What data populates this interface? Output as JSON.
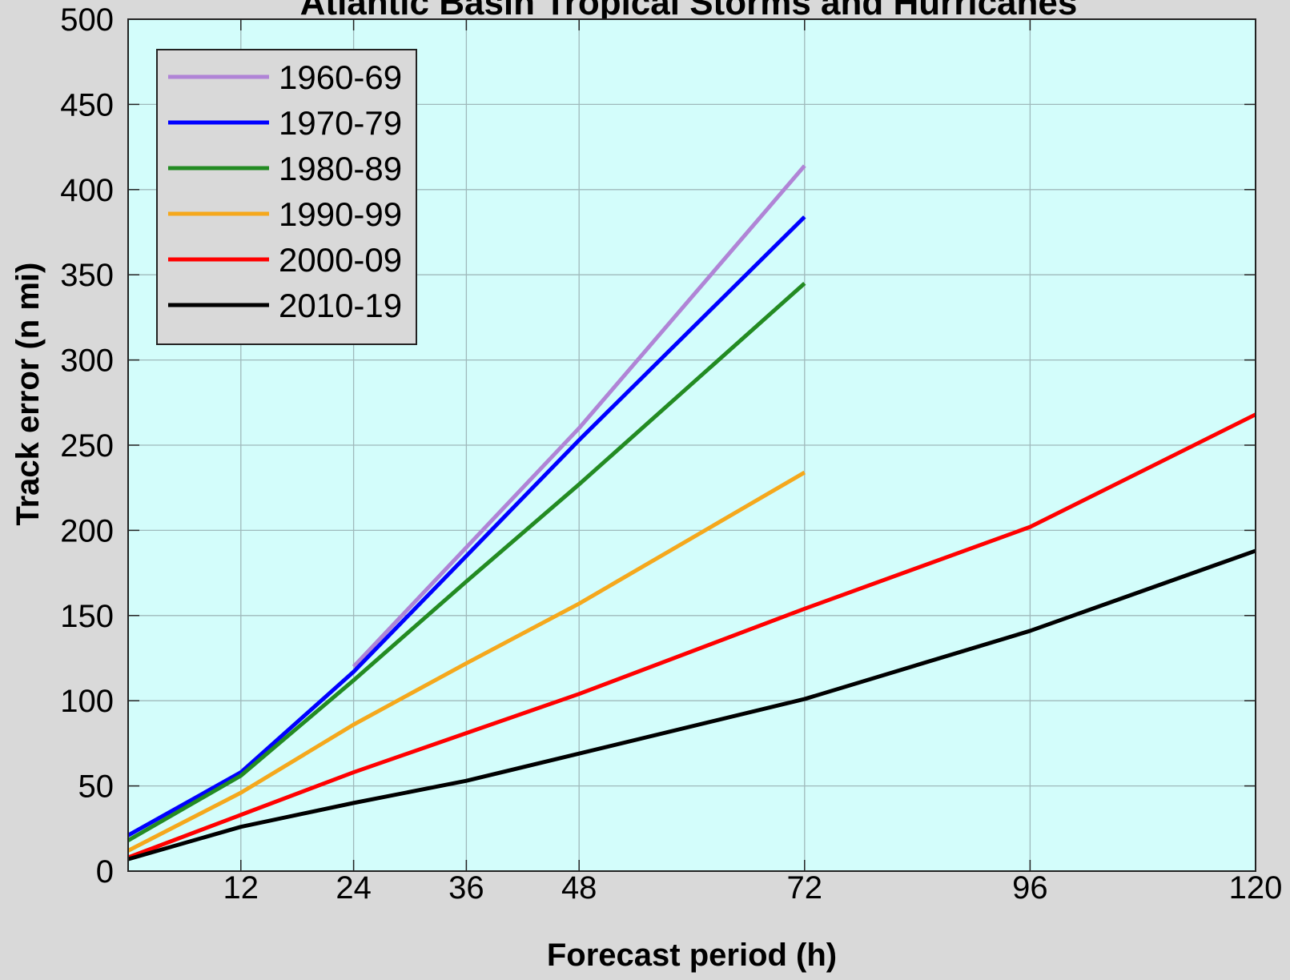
{
  "chart_data": {
    "type": "line",
    "title": "Atlantic Basin Tropical Storms and Hurricanes",
    "xlabel": "Forecast period (h)",
    "ylabel": "Track error (n mi)",
    "xlim": [
      0,
      120
    ],
    "ylim": [
      0,
      500
    ],
    "xticks": [
      12,
      24,
      36,
      48,
      72,
      96,
      120
    ],
    "yticks": [
      0,
      50,
      100,
      150,
      200,
      250,
      300,
      350,
      400,
      450,
      500
    ],
    "grid": true,
    "legend_position": "top-left",
    "background_color": "#d3fdfb",
    "series": [
      {
        "name": "1960-69",
        "color": "#b084d6",
        "x": [
          24,
          36,
          48,
          72
        ],
        "y": [
          120,
          190,
          260,
          414
        ]
      },
      {
        "name": "1970-79",
        "color": "#0000ff",
        "x": [
          0,
          12,
          24,
          36,
          48,
          72
        ],
        "y": [
          21,
          58,
          117,
          185,
          253,
          384
        ]
      },
      {
        "name": "1980-89",
        "color": "#238b22",
        "x": [
          0,
          12,
          24,
          36,
          48,
          72
        ],
        "y": [
          18,
          56,
          112,
          170,
          227,
          345
        ]
      },
      {
        "name": "1990-99",
        "color": "#f5a81c",
        "x": [
          0,
          12,
          24,
          36,
          48,
          72
        ],
        "y": [
          12,
          46,
          86,
          122,
          157,
          234
        ]
      },
      {
        "name": "2000-09",
        "color": "#ff0000",
        "x": [
          0,
          12,
          24,
          36,
          48,
          72,
          96,
          120
        ],
        "y": [
          8,
          33,
          58,
          81,
          104,
          154,
          202,
          268
        ]
      },
      {
        "name": "2010-19",
        "color": "#000000",
        "x": [
          0,
          12,
          24,
          36,
          48,
          72,
          96,
          120
        ],
        "y": [
          7,
          26,
          40,
          53,
          69,
          101,
          141,
          188
        ]
      }
    ]
  }
}
